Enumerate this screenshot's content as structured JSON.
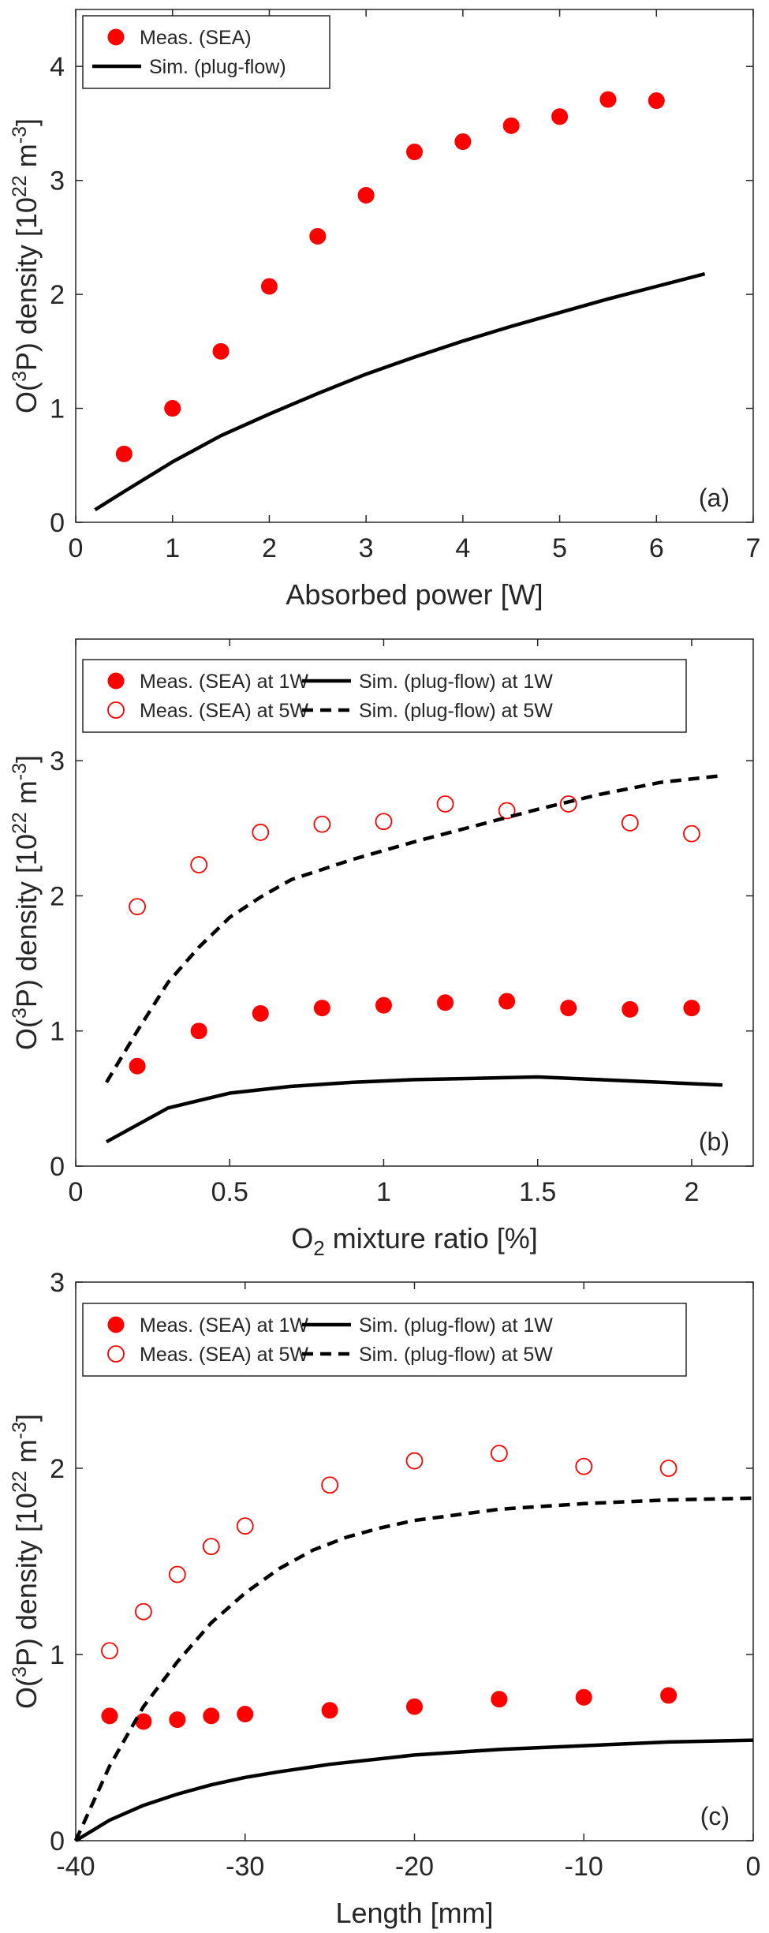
{
  "colors": {
    "meas": "#ff0000",
    "sim": "#000000",
    "axis": "#262626"
  },
  "chart_data": [
    {
      "type": "scatter",
      "panel_label": "(a)",
      "xlabel": "Absorbed power [W]",
      "ylabel": {
        "pre": "O(",
        "sup1": "3",
        "mid": "P) density [10",
        "sup2": "22",
        "mid2": " m",
        "sup3": "-3",
        "post": "]"
      },
      "xlim": [
        0,
        7
      ],
      "ylim": [
        0,
        4.5
      ],
      "xticks": [
        0,
        1,
        2,
        3,
        4,
        5,
        6,
        7
      ],
      "xtick_labels": [
        "0",
        "1",
        "2",
        "3",
        "4",
        "5",
        "6",
        "7"
      ],
      "yticks": [
        0,
        1,
        2,
        3,
        4
      ],
      "ytick_labels": [
        "0",
        "1",
        "2",
        "3",
        "4"
      ],
      "legend_position": "top-left",
      "legend_columns": 1,
      "series": [
        {
          "name": "Meas. (SEA)",
          "kind": "marker-filled",
          "x": [
            0.5,
            1,
            1.5,
            2,
            2.5,
            3,
            3.5,
            4,
            4.5,
            5,
            5.5,
            6
          ],
          "y": [
            0.6,
            1.0,
            1.5,
            2.07,
            2.51,
            2.87,
            3.25,
            3.34,
            3.48,
            3.56,
            3.71,
            3.7
          ]
        },
        {
          "name": "Sim. (plug-flow)",
          "kind": "line-solid",
          "x": [
            0.2,
            0.5,
            1,
            1.5,
            2,
            2.5,
            3,
            3.5,
            4,
            4.5,
            5,
            5.5,
            6,
            6.5
          ],
          "y": [
            0.11,
            0.27,
            0.53,
            0.76,
            0.95,
            1.13,
            1.3,
            1.45,
            1.59,
            1.72,
            1.84,
            1.96,
            2.07,
            2.18
          ]
        }
      ]
    },
    {
      "type": "scatter",
      "panel_label": "(b)",
      "xlabel": {
        "pre": "O",
        "sub": "2",
        "post": " mixture ratio [%]"
      },
      "ylabel": {
        "pre": "O(",
        "sup1": "3",
        "mid": "P) density [10",
        "sup2": "22",
        "mid2": " m",
        "sup3": "-3",
        "post": "]"
      },
      "xlim": [
        0,
        2.2
      ],
      "ylim": [
        0,
        3.9
      ],
      "xticks": [
        0,
        0.5,
        1,
        1.5,
        2
      ],
      "xtick_labels": [
        "0",
        "0.5",
        "1",
        "1.5",
        "2"
      ],
      "yticks": [
        0,
        1,
        2,
        3
      ],
      "ytick_labels": [
        "0",
        "1",
        "2",
        "3"
      ],
      "legend_position": "top",
      "legend_columns": 2,
      "series": [
        {
          "name": "Meas. (SEA) at 1W",
          "kind": "marker-filled",
          "x": [
            0.2,
            0.4,
            0.6,
            0.8,
            1.0,
            1.2,
            1.4,
            1.6,
            1.8,
            2.0
          ],
          "y": [
            0.74,
            1.0,
            1.13,
            1.17,
            1.19,
            1.21,
            1.22,
            1.17,
            1.16,
            1.17
          ]
        },
        {
          "name": "Sim. (plug-flow) at 1W",
          "kind": "line-solid",
          "x": [
            0.1,
            0.3,
            0.5,
            0.7,
            0.9,
            1.1,
            1.3,
            1.5,
            1.7,
            1.9,
            2.1
          ],
          "y": [
            0.18,
            0.43,
            0.54,
            0.59,
            0.62,
            0.64,
            0.65,
            0.66,
            0.64,
            0.62,
            0.6
          ]
        },
        {
          "name": "Meas. (SEA) at 5W",
          "kind": "marker-open",
          "x": [
            0.2,
            0.4,
            0.6,
            0.8,
            1.0,
            1.2,
            1.4,
            1.6,
            1.8,
            2.0
          ],
          "y": [
            1.92,
            2.23,
            2.47,
            2.53,
            2.55,
            2.68,
            2.63,
            2.68,
            2.54,
            2.46
          ]
        },
        {
          "name": "Sim. (plug-flow) at 5W",
          "kind": "line-dashed",
          "x": [
            0.1,
            0.2,
            0.3,
            0.4,
            0.5,
            0.6,
            0.7,
            0.9,
            1.1,
            1.3,
            1.5,
            1.7,
            1.9,
            2.1
          ],
          "y": [
            0.62,
            1.0,
            1.36,
            1.62,
            1.84,
            1.99,
            2.12,
            2.27,
            2.4,
            2.52,
            2.64,
            2.75,
            2.84,
            2.89
          ]
        }
      ]
    },
    {
      "type": "scatter",
      "panel_label": "(c)",
      "xlabel": "Length [mm]",
      "ylabel": {
        "pre": "O(",
        "sup1": "3",
        "mid": "P) density [10",
        "sup2": "22",
        "mid2": " m",
        "sup3": "-3",
        "post": "]"
      },
      "xlim": [
        -40,
        0
      ],
      "ylim": [
        0,
        3
      ],
      "xticks": [
        -40,
        -30,
        -20,
        -10,
        0
      ],
      "xtick_labels": [
        "-40",
        "-30",
        "-20",
        "-10",
        "0"
      ],
      "yticks": [
        0,
        1,
        2,
        3
      ],
      "ytick_labels": [
        "0",
        "1",
        "2",
        "3"
      ],
      "legend_position": "top",
      "legend_columns": 2,
      "series": [
        {
          "name": "Meas. (SEA) at 1W",
          "kind": "marker-filled",
          "x": [
            -38,
            -36,
            -34,
            -32,
            -30,
            -25,
            -20,
            -15,
            -10,
            -5
          ],
          "y": [
            0.67,
            0.64,
            0.65,
            0.67,
            0.68,
            0.7,
            0.72,
            0.76,
            0.77,
            0.78
          ]
        },
        {
          "name": "Sim. (plug-flow) at 1W",
          "kind": "line-solid",
          "x": [
            -40,
            -38,
            -36,
            -34,
            -32,
            -30,
            -28,
            -25,
            -20,
            -15,
            -10,
            -5,
            0
          ],
          "y": [
            0.0,
            0.11,
            0.19,
            0.25,
            0.3,
            0.34,
            0.37,
            0.41,
            0.46,
            0.49,
            0.51,
            0.53,
            0.54
          ]
        },
        {
          "name": "Meas. (SEA) at 5W",
          "kind": "marker-open",
          "x": [
            -38,
            -36,
            -34,
            -32,
            -30,
            -25,
            -20,
            -15,
            -10,
            -5
          ],
          "y": [
            1.02,
            1.23,
            1.43,
            1.58,
            1.69,
            1.91,
            2.04,
            2.08,
            2.01,
            2.0
          ]
        },
        {
          "name": "Sim. (plug-flow) at 5W",
          "kind": "line-dashed",
          "x": [
            -40,
            -38,
            -36,
            -34,
            -32,
            -30,
            -28,
            -26,
            -24,
            -22,
            -20,
            -15,
            -10,
            -5,
            0
          ],
          "y": [
            0.0,
            0.4,
            0.72,
            0.96,
            1.17,
            1.33,
            1.46,
            1.56,
            1.63,
            1.68,
            1.72,
            1.78,
            1.81,
            1.83,
            1.84
          ]
        }
      ]
    }
  ]
}
